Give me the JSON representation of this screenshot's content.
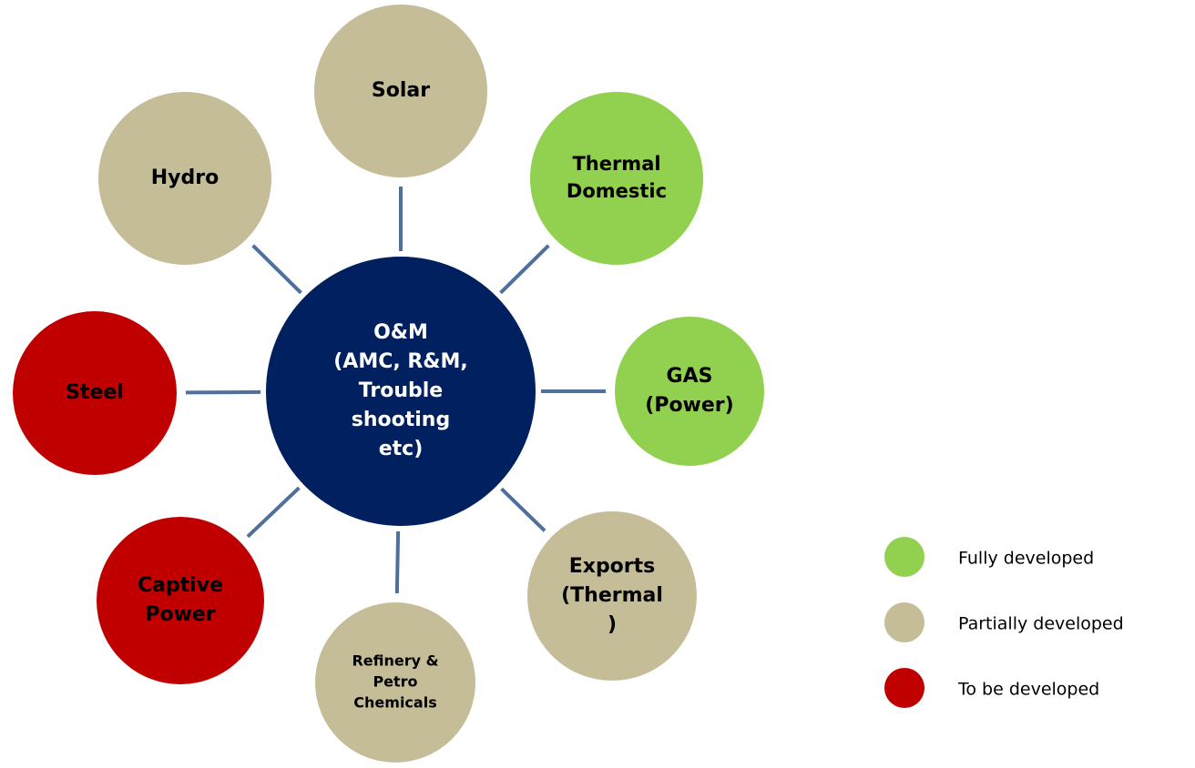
{
  "center": {
    "lines": [
      "O&M",
      "(AMC, R&M,",
      "Trouble",
      "shooting",
      "etc)"
    ],
    "color": "#002060"
  },
  "nodes": [
    {
      "lines": [
        "Solar"
      ],
      "color": "#c4bd97"
    },
    {
      "lines": [
        "Thermal",
        "Domestic"
      ],
      "color": "#92d050"
    },
    {
      "lines": [
        "GAS",
        "(Power)"
      ],
      "color": "#92d050"
    },
    {
      "lines": [
        "Exports",
        "(Thermal",
        ")"
      ],
      "color": "#c4bd97"
    },
    {
      "lines": [
        "Refinery &",
        "Petro",
        "Chemicals"
      ],
      "color": "#c4bd97"
    },
    {
      "lines": [
        "Captive",
        "Power"
      ],
      "color": "#c00000"
    },
    {
      "lines": [
        "Steel"
      ],
      "color": "#c00000"
    },
    {
      "lines": [
        "Hydro"
      ],
      "color": "#c4bd97"
    }
  ],
  "legend": [
    {
      "label": "Fully developed",
      "color": "#92d050"
    },
    {
      "label": "Partially developed",
      "color": "#c4bd97"
    },
    {
      "label": "To be developed",
      "color": "#c00000"
    }
  ]
}
